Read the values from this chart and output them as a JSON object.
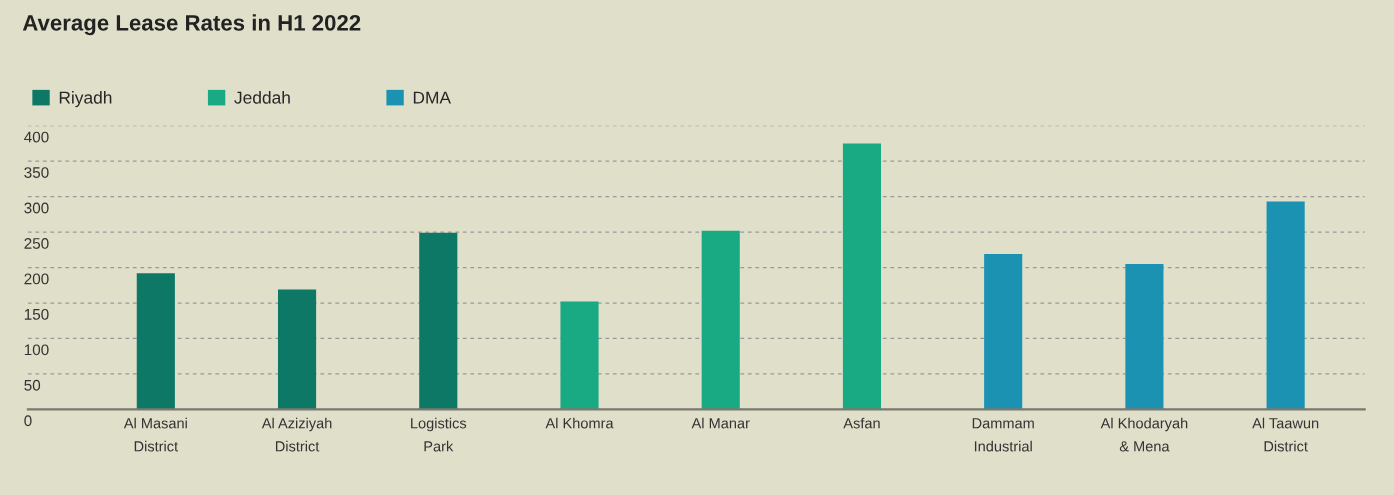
{
  "chart_data": {
    "type": "bar",
    "title": "Average Lease Rates in H1 2022",
    "categories": [
      "Al Masani\nDistrict",
      "Al Aziziyah\nDistrict",
      "Logistics\nPark",
      "Al Khomra",
      "Al Manar",
      "Asfan",
      "Dammam\nIndustrial",
      "Al Khodaryah\n& Mena",
      "Al Taawun\nDistrict"
    ],
    "series": [
      {
        "name": "Riyadh",
        "color": "#0e7866",
        "values": [
          192,
          169,
          249,
          null,
          null,
          null,
          null,
          null,
          null
        ]
      },
      {
        "name": "Jeddah",
        "color": "#1aaa83",
        "values": [
          null,
          null,
          null,
          152,
          252,
          375,
          null,
          null,
          null
        ]
      },
      {
        "name": "DMA",
        "color": "#1c92b3",
        "values": [
          null,
          null,
          null,
          null,
          null,
          null,
          219,
          205,
          293
        ]
      }
    ],
    "ylim": [
      0,
      400
    ],
    "yticks": [
      0,
      50,
      100,
      150,
      200,
      250,
      300,
      350,
      400
    ],
    "grid": "y",
    "legend": "top left"
  }
}
